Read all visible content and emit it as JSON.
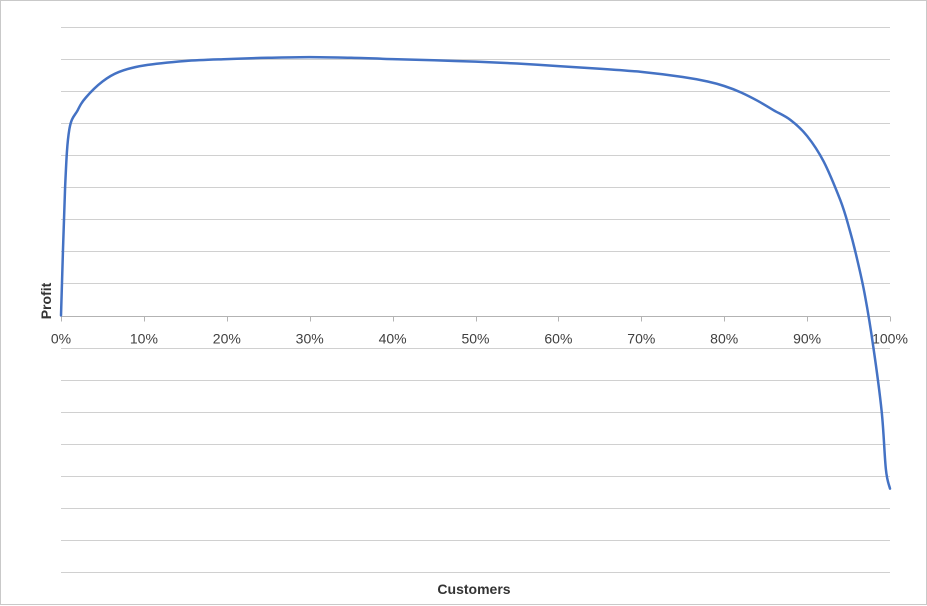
{
  "chart_data": {
    "type": "line",
    "title": "",
    "xlabel": "Customers",
    "ylabel": "Profit",
    "xlim": [
      0,
      100
    ],
    "ylim": [
      -4,
      4.5
    ],
    "x_tick_labels": [
      "0%",
      "10%",
      "20%",
      "30%",
      "40%",
      "50%",
      "60%",
      "70%",
      "80%",
      "90%",
      "100%"
    ],
    "grid": true,
    "y_tick_labels_visible": false,
    "line_color": "#4472C4",
    "series": [
      {
        "x": [
          0,
          0.5,
          1,
          2,
          3,
          5,
          7,
          10,
          15,
          20,
          25,
          30,
          35,
          40,
          45,
          50,
          55,
          60,
          65,
          70,
          75,
          78,
          80,
          82,
          84,
          86,
          88,
          90,
          92,
          94,
          95,
          96,
          97,
          98,
          99,
          99.5,
          100
        ],
        "y": [
          0,
          2.0,
          2.9,
          3.2,
          3.4,
          3.65,
          3.8,
          3.9,
          3.97,
          4.0,
          4.02,
          4.03,
          4.02,
          4.0,
          3.98,
          3.96,
          3.93,
          3.89,
          3.85,
          3.8,
          3.72,
          3.65,
          3.58,
          3.48,
          3.35,
          3.2,
          3.05,
          2.8,
          2.4,
          1.8,
          1.4,
          0.9,
          0.3,
          -0.5,
          -1.5,
          -2.4,
          -2.7
        ]
      }
    ]
  }
}
